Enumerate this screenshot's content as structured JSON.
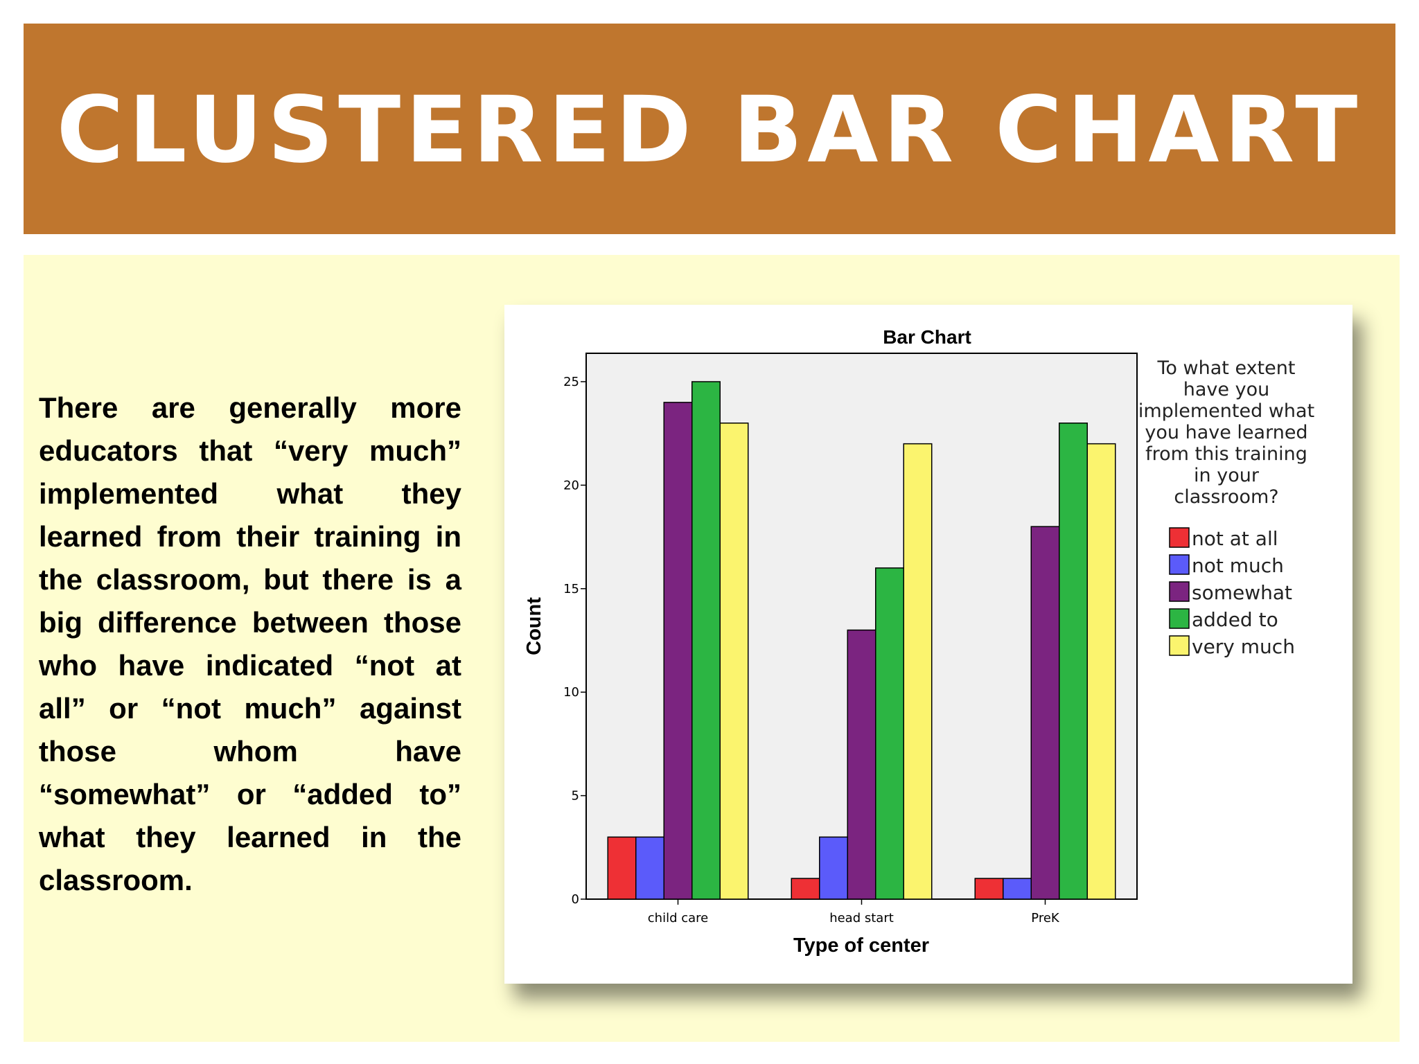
{
  "slide": {
    "title": "CLUSTERED BAR CHART",
    "body_text": "There are generally more educators that “very much” implemented what they learned from their training in the classroom, but there is a big  difference between those who have indicated “not at all” or “not much” against those whom have “somewhat” or “added to” what they learned in the classroom."
  },
  "colors": {
    "banner": "#bf762e",
    "panel": "#fefdd0",
    "plot_background": "#f0f0f0"
  },
  "chart_data": {
    "type": "bar",
    "title": "Bar Chart",
    "xlabel": "Type of center",
    "ylabel": "Count",
    "categories": [
      "child care",
      "head start",
      "PreK"
    ],
    "ylim": [
      0,
      26
    ],
    "yticks": [
      0,
      5,
      10,
      15,
      20,
      25
    ],
    "grid": false,
    "legend": {
      "title_lines": [
        "To what extent",
        "have you",
        "implemented what",
        "you have learned",
        "from this training",
        "in your",
        "classroom?"
      ],
      "placement": "right"
    },
    "series": [
      {
        "name": "not at all",
        "color": "#ee3035",
        "values": [
          3,
          1,
          1
        ]
      },
      {
        "name": "not much",
        "color": "#5b5bfa",
        "values": [
          3,
          3,
          1
        ]
      },
      {
        "name": "somewhat",
        "color": "#7b2480",
        "values": [
          24,
          13,
          18
        ]
      },
      {
        "name": "added to",
        "color": "#2cb543",
        "values": [
          25,
          16,
          23
        ]
      },
      {
        "name": "very much",
        "color": "#fbf46e",
        "values": [
          23,
          22,
          22
        ]
      }
    ]
  }
}
